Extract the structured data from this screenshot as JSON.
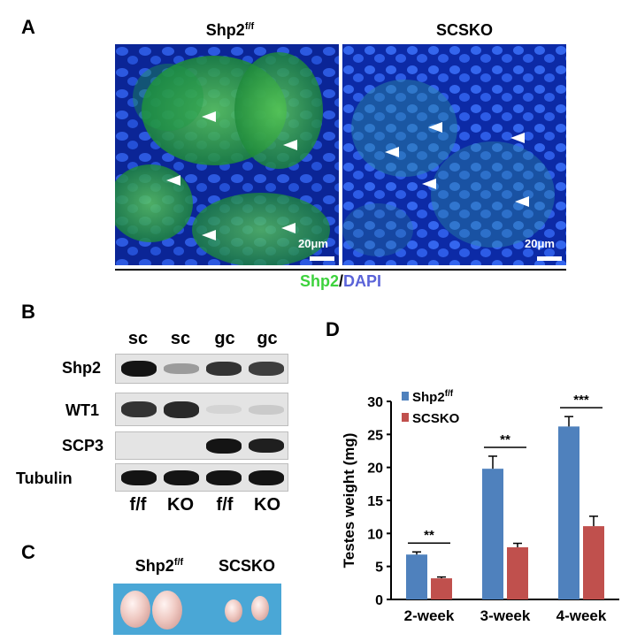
{
  "panel_a": {
    "letter": "A",
    "left_title": "Shp2",
    "left_title_sup": "f/f",
    "right_title": "SCSKO",
    "left_scale": "20μm",
    "right_scale": "20μm",
    "caption_green": "Shp2",
    "caption_sep": "/",
    "caption_blue": "DAPI",
    "colors": {
      "green": "#3dd23d",
      "blue": "#5a63d8",
      "tissue_blue": "#1f4fd0"
    }
  },
  "panel_b": {
    "letter": "B",
    "lane_top": [
      "sc",
      "sc",
      "gc",
      "gc"
    ],
    "lane_bottom": [
      "f/f",
      "KO",
      "f/f",
      "KO"
    ],
    "rows": [
      {
        "label": "Shp2",
        "intensity": [
          1.0,
          0.35,
          0.85,
          0.8
        ]
      },
      {
        "label": "WT1",
        "intensity": [
          0.85,
          0.9,
          0.05,
          0.12
        ]
      },
      {
        "label": "SCP3",
        "intensity": [
          0.0,
          0.0,
          1.0,
          0.95
        ]
      },
      {
        "label": "Tubulin",
        "intensity": [
          1.0,
          1.0,
          1.0,
          1.0
        ]
      }
    ]
  },
  "panel_c": {
    "letter": "C",
    "left_title": "Shp2",
    "left_title_sup": "f/f",
    "right_title": "SCSKO"
  },
  "panel_d": {
    "letter": "D"
  },
  "chart_data": {
    "type": "bar",
    "categories": [
      "2-week",
      "3-week",
      "4-week"
    ],
    "series": [
      {
        "name": "Shp2",
        "name_sup": "f/f",
        "color": "#4f81bd",
        "values": [
          6.8,
          19.8,
          26.2
        ],
        "errors": [
          0.4,
          1.9,
          1.5
        ]
      },
      {
        "name": "SCSKO",
        "color": "#c0504d",
        "values": [
          3.2,
          7.9,
          11.1
        ],
        "errors": [
          0.2,
          0.6,
          1.5
        ]
      }
    ],
    "significance": [
      "**",
      "**",
      "***"
    ],
    "ylabel": "Testes weight (mg)",
    "ylim": [
      0,
      30
    ],
    "yticks": [
      0,
      5,
      10,
      15,
      20,
      25,
      30
    ],
    "legend": "top-left"
  }
}
